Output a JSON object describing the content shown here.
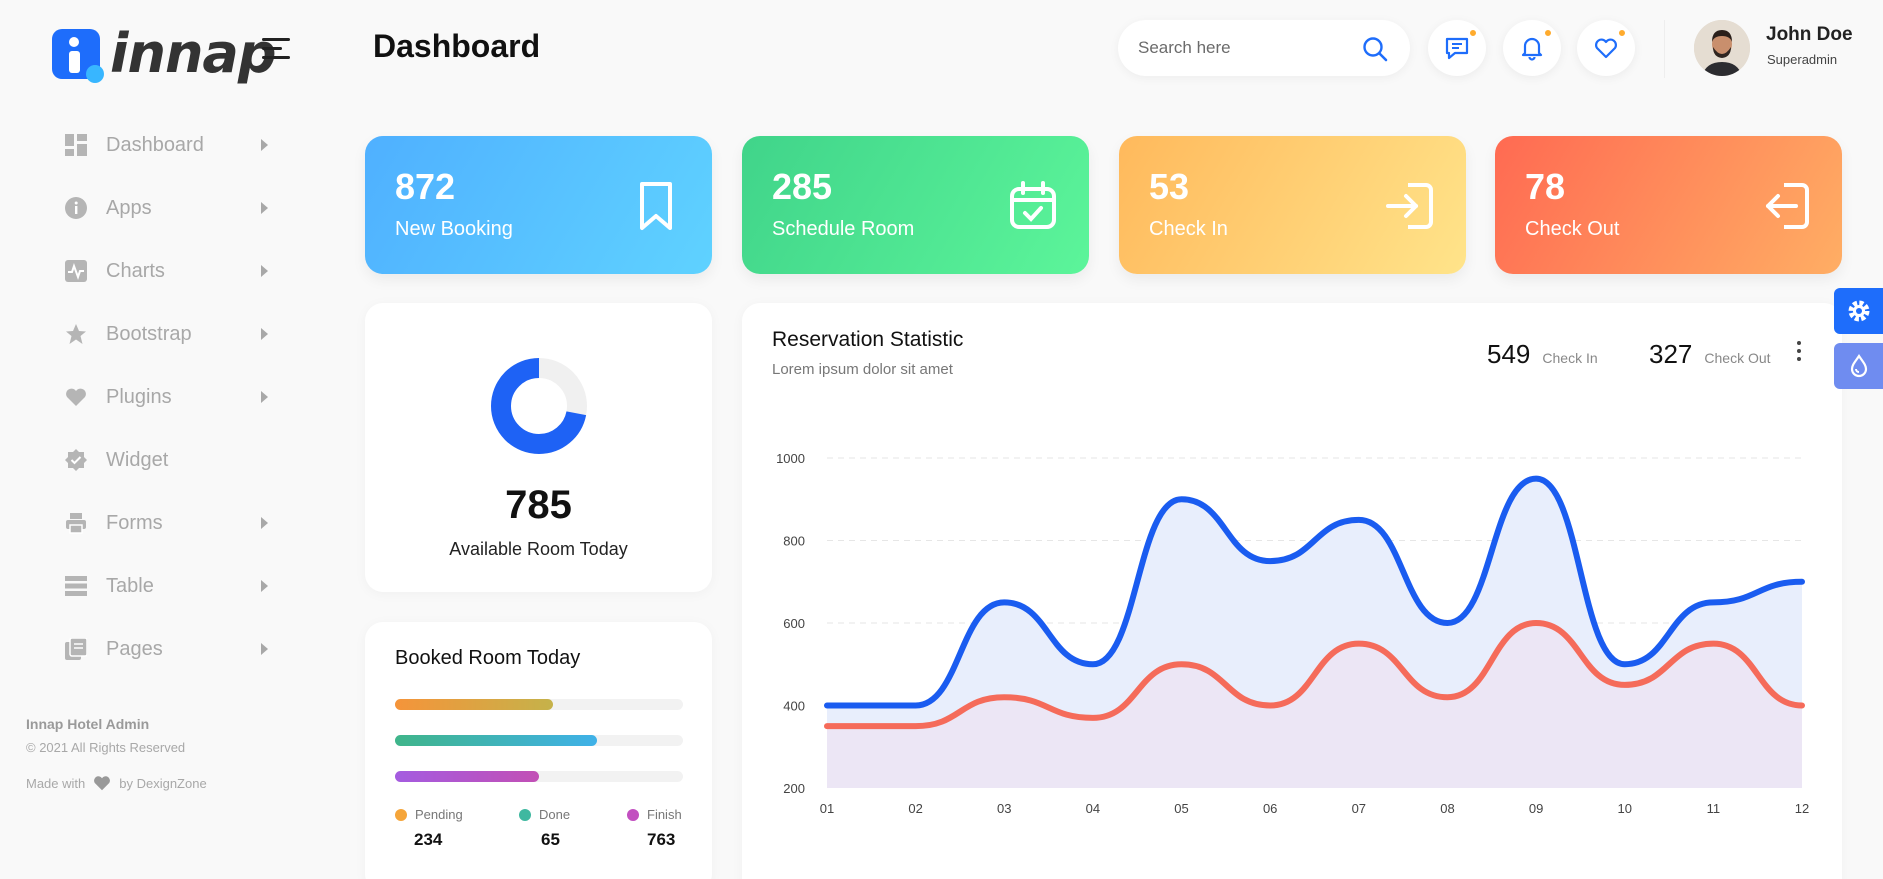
{
  "brand": {
    "name": "innap"
  },
  "header": {
    "title": "Dashboard",
    "search_placeholder": "Search here",
    "user": {
      "name": "John Doe",
      "role": "Superadmin"
    }
  },
  "sidebar": {
    "items": [
      {
        "label": "Dashboard",
        "icon": "grid-icon"
      },
      {
        "label": "Apps",
        "icon": "info-icon"
      },
      {
        "label": "Charts",
        "icon": "chart-pulse-icon"
      },
      {
        "label": "Bootstrap",
        "icon": "star-icon"
      },
      {
        "label": "Plugins",
        "icon": "heart-icon"
      },
      {
        "label": "Widget",
        "icon": "badge-check-icon"
      },
      {
        "label": "Forms",
        "icon": "printer-icon"
      },
      {
        "label": "Table",
        "icon": "table-icon"
      },
      {
        "label": "Pages",
        "icon": "pages-icon"
      }
    ],
    "footer": {
      "title": "Innap Hotel Admin",
      "copyright": "© 2021 All Rights Reserved",
      "made_with": "Made with",
      "by": "by DexignZone"
    }
  },
  "stats": [
    {
      "value": "872",
      "label": "New Booking",
      "icon": "bookmark-icon"
    },
    {
      "value": "285",
      "label": "Schedule Room",
      "icon": "calendar-check-icon"
    },
    {
      "value": "53",
      "label": "Check In",
      "icon": "login-icon"
    },
    {
      "value": "78",
      "label": "Check Out",
      "icon": "logout-icon"
    }
  ],
  "available": {
    "value": "785",
    "label": "Available Room Today",
    "donut_fraction": 0.72
  },
  "booked": {
    "title": "Booked Room Today",
    "bars": [
      {
        "fraction": 0.55,
        "color_from": "#f5943a",
        "color_to": "#c5b24a"
      },
      {
        "fraction": 0.7,
        "color_from": "#3fb58a",
        "color_to": "#3fb1e8"
      },
      {
        "fraction": 0.5,
        "color_from": "#a45ce0",
        "color_to": "#c24fb5"
      }
    ],
    "legend": [
      {
        "label": "Pending",
        "value": "234",
        "color": "#f5a53a"
      },
      {
        "label": "Done",
        "value": "65",
        "color": "#3fb8a0"
      },
      {
        "label": "Finish",
        "value": "763",
        "color": "#c24fc0"
      }
    ]
  },
  "reservation": {
    "title": "Reservation Statistic",
    "subtitle": "Lorem ipsum dolor sit amet",
    "checkin_value": "549",
    "checkin_label": "Check In",
    "checkout_value": "327",
    "checkout_label": "Check Out"
  },
  "chart_data": {
    "type": "area",
    "title": "Reservation Statistic",
    "x": [
      "01",
      "02",
      "03",
      "04",
      "05",
      "06",
      "07",
      "08",
      "09",
      "10",
      "11",
      "12"
    ],
    "ylim": [
      200,
      1000
    ],
    "yticks": [
      200,
      400,
      600,
      800,
      1000
    ],
    "grid": true,
    "series": [
      {
        "values": [
          400,
          400,
          650,
          500,
          900,
          750,
          850,
          600,
          950,
          500,
          650,
          700
        ],
        "color": "#1a5cf0",
        "fill": "#e8eefc"
      },
      {
        "values": [
          350,
          350,
          420,
          370,
          500,
          400,
          550,
          420,
          600,
          450,
          550,
          400
        ],
        "color": "#f56b5a",
        "fill": "#ece4f2"
      }
    ]
  },
  "colors": {
    "accent": "#1e6dfb",
    "warning": "#ffab2d"
  }
}
